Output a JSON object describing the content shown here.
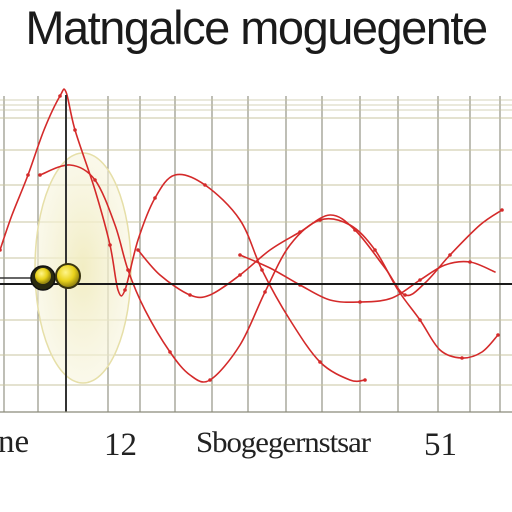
{
  "chart_data": {
    "type": "line",
    "title": "Matngalce moguegente",
    "xlabel": "",
    "ylabel": "",
    "x_tick_labels": [
      "ne",
      "12",
      "Sbogegernstsar",
      "51"
    ],
    "grid": true,
    "legend": "none",
    "colors": {
      "curve": "#d42a2a",
      "grid": "#8a8a7a",
      "minor_grid": "#c8c4a0",
      "axis": "#1a1a1a",
      "highlight": "#f3efc8",
      "marker": "#e8d21a"
    },
    "series": [
      {
        "points": [
          [
            0,
            250
          ],
          [
            12,
            215
          ],
          [
            28,
            175
          ],
          [
            44,
            130
          ],
          [
            60,
            96
          ],
          [
            66,
            92
          ],
          [
            75,
            130
          ],
          [
            95,
            190
          ],
          [
            110,
            245
          ],
          [
            118,
            290
          ],
          [
            125,
            290
          ],
          [
            138,
            240
          ],
          [
            155,
            198
          ],
          [
            175,
            175
          ],
          [
            205,
            185
          ],
          [
            240,
            220
          ],
          [
            262,
            270
          ],
          [
            290,
            320
          ],
          [
            320,
            362
          ],
          [
            350,
            380
          ],
          [
            365,
            380
          ]
        ]
      },
      {
        "points": [
          [
            40,
            175
          ],
          [
            70,
            165
          ],
          [
            95,
            180
          ],
          [
            115,
            225
          ],
          [
            128,
            270
          ],
          [
            145,
            310
          ],
          [
            170,
            352
          ],
          [
            190,
            375
          ],
          [
            210,
            380
          ],
          [
            240,
            345
          ],
          [
            265,
            292
          ],
          [
            290,
            245
          ],
          [
            320,
            220
          ],
          [
            350,
            225
          ],
          [
            375,
            250
          ],
          [
            398,
            290
          ],
          [
            420,
            320
          ],
          [
            440,
            350
          ],
          [
            462,
            358
          ],
          [
            482,
            352
          ],
          [
            498,
            335
          ]
        ]
      },
      {
        "points": [
          [
            138,
            250
          ],
          [
            160,
            275
          ],
          [
            190,
            295
          ],
          [
            210,
            295
          ],
          [
            240,
            275
          ],
          [
            270,
            250
          ],
          [
            300,
            232
          ],
          [
            330,
            215
          ],
          [
            355,
            230
          ],
          [
            385,
            268
          ],
          [
            405,
            295
          ],
          [
            425,
            283
          ],
          [
            450,
            255
          ],
          [
            480,
            225
          ],
          [
            502,
            210
          ]
        ]
      },
      {
        "points": [
          [
            240,
            255
          ],
          [
            270,
            268
          ],
          [
            300,
            285
          ],
          [
            330,
            300
          ],
          [
            360,
            302
          ],
          [
            392,
            298
          ],
          [
            420,
            280
          ],
          [
            445,
            265
          ],
          [
            470,
            262
          ],
          [
            495,
            272
          ]
        ]
      }
    ]
  }
}
